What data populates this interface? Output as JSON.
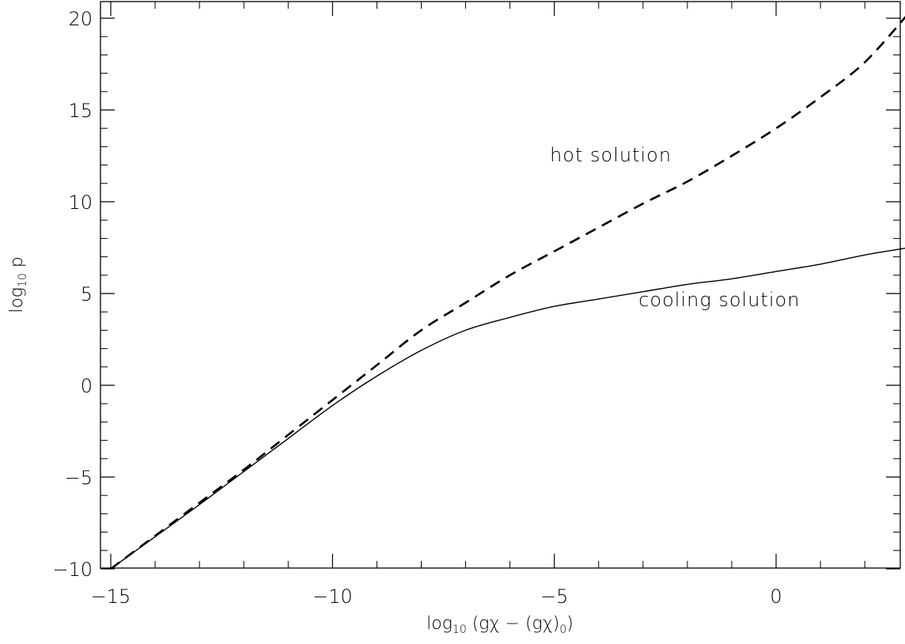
{
  "chart_data": {
    "type": "line",
    "xlabel": {
      "base": "log",
      "sub": "10",
      "expr": " (gχ − (gχ)",
      "sub2": "0",
      "close": ")"
    },
    "ylabel": {
      "base": "log",
      "sub": "10",
      "expr": " p"
    },
    "xlim": [
      -15,
      3
    ],
    "ylim": [
      -10,
      21
    ],
    "x_ticks": [
      {
        "value": -15,
        "label": "−15"
      },
      {
        "value": -10,
        "label": "−10"
      },
      {
        "value": -5,
        "label": "−5"
      },
      {
        "value": 0,
        "label": "0"
      }
    ],
    "y_ticks": [
      {
        "value": -10,
        "label": "−10"
      },
      {
        "value": -5,
        "label": "−5"
      },
      {
        "value": 0,
        "label": "0"
      },
      {
        "value": 5,
        "label": "5"
      },
      {
        "value": 10,
        "label": "10"
      },
      {
        "value": 15,
        "label": "15"
      },
      {
        "value": 20,
        "label": "20"
      }
    ],
    "series": [
      {
        "style": "dashed",
        "x": [
          -15,
          -14,
          -13,
          -12,
          -11,
          -10,
          -9,
          -8,
          -7,
          -6,
          -5,
          -4,
          -3,
          -2,
          -1,
          0,
          1,
          2,
          3
        ],
        "y": [
          -10,
          -8.2,
          -6.4,
          -4.6,
          -2.7,
          -0.8,
          1.1,
          3.0,
          4.5,
          6.0,
          7.3,
          8.6,
          9.9,
          11.1,
          12.5,
          14.0,
          15.7,
          17.6,
          20.3
        ]
      },
      {
        "style": "solid",
        "x": [
          -15,
          -14,
          -13,
          -12,
          -11,
          -10,
          -9,
          -8,
          -7,
          -6,
          -5,
          -4,
          -3,
          -2,
          -1,
          0,
          1,
          2,
          3
        ],
        "y": [
          -10,
          -8.25,
          -6.5,
          -4.7,
          -2.9,
          -1.1,
          0.5,
          1.9,
          3.0,
          3.7,
          4.3,
          4.7,
          5.1,
          5.5,
          5.8,
          6.2,
          6.6,
          7.1,
          7.5
        ]
      }
    ],
    "annotations": [
      {
        "text": "hot solution",
        "x": -5.1,
        "y": 12.2
      },
      {
        "text": "cooling solution",
        "x": -3.1,
        "y": 4.3
      }
    ],
    "grid": false,
    "legend": "none"
  }
}
